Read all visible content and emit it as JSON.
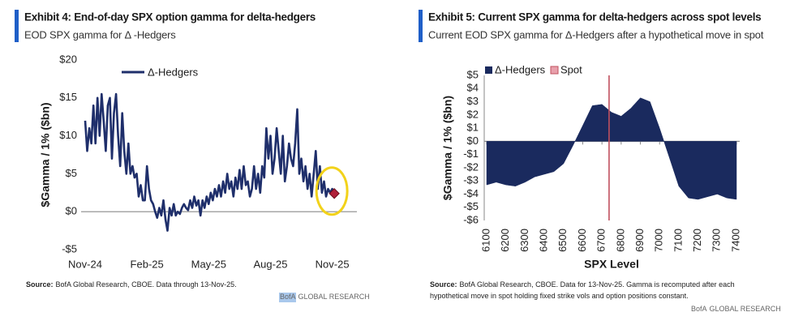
{
  "chart_data": [
    {
      "type": "line",
      "title": "Exhibit 4: End-of-day SPX option gamma for delta-hedgers",
      "subtitle": "EOD SPX gamma for  Δ -Hedgers",
      "y_label": "$Gamma / 1% ($bn)",
      "xlim": [
        0,
        13
      ],
      "xticks": [
        {
          "value": 0,
          "label": "Nov-24"
        },
        {
          "value": 3,
          "label": "Feb-25"
        },
        {
          "value": 6,
          "label": "May-25"
        },
        {
          "value": 9,
          "label": "Aug-25"
        },
        {
          "value": 12,
          "label": "Nov-25"
        }
      ],
      "ylim": [
        -5,
        20
      ],
      "yticks": [
        {
          "value": -5,
          "label": "-$5"
        },
        {
          "value": 0,
          "label": "$0"
        },
        {
          "value": 5,
          "label": "$5"
        },
        {
          "value": 10,
          "label": "$10"
        },
        {
          "value": 15,
          "label": "$15"
        },
        {
          "value": 20,
          "label": "$20"
        }
      ],
      "zero_line": true,
      "highlight_last": true,
      "x": [
        0,
        0.1,
        0.2,
        0.3,
        0.4,
        0.5,
        0.6,
        0.7,
        0.8,
        0.9,
        1,
        1.1,
        1.2,
        1.3,
        1.4,
        1.5,
        1.6,
        1.7,
        1.8,
        1.9,
        2,
        2.1,
        2.2,
        2.3,
        2.4,
        2.5,
        2.6,
        2.7,
        2.8,
        2.9,
        3,
        3.1,
        3.2,
        3.3,
        3.4,
        3.5,
        3.6,
        3.7,
        3.8,
        3.9,
        4,
        4.1,
        4.2,
        4.3,
        4.4,
        4.5,
        4.6,
        4.7,
        4.8,
        4.9,
        5,
        5.1,
        5.2,
        5.3,
        5.4,
        5.5,
        5.6,
        5.7,
        5.8,
        5.9,
        6,
        6.1,
        6.2,
        6.3,
        6.4,
        6.5,
        6.6,
        6.7,
        6.8,
        6.9,
        7,
        7.1,
        7.2,
        7.3,
        7.4,
        7.5,
        7.6,
        7.7,
        7.8,
        7.9,
        8,
        8.1,
        8.2,
        8.3,
        8.4,
        8.5,
        8.6,
        8.7,
        8.8,
        8.9,
        9,
        9.1,
        9.2,
        9.3,
        9.4,
        9.5,
        9.6,
        9.7,
        9.8,
        9.9,
        10,
        10.1,
        10.2,
        10.3,
        10.4,
        10.5,
        10.6,
        10.7,
        10.8,
        10.9,
        11,
        11.1,
        11.2,
        11.3,
        11.4,
        11.5,
        11.6,
        11.7,
        11.8,
        11.9,
        12,
        12.1
      ],
      "series": [
        {
          "name": "Δ-Hedgers",
          "color": "#1f2f6b",
          "values": [
            12,
            8,
            11,
            9,
            14,
            9,
            15,
            10,
            15.5,
            12,
            8,
            14,
            15,
            7,
            13,
            15.5,
            10,
            6,
            13,
            8,
            5,
            9,
            5,
            6,
            4.5,
            5,
            2,
            3.5,
            1.5,
            1.5,
            6,
            3,
            1.5,
            1,
            0,
            -0.8,
            0.5,
            -0.5,
            1.5,
            -1,
            -2.5,
            0.5,
            -0.5,
            1,
            -0.5,
            0,
            -0.3,
            0.5,
            1,
            0.5,
            0.2,
            1.5,
            0.5,
            2,
            0.8,
            1.5,
            -0.5,
            1.5,
            0.5,
            2,
            1,
            2.5,
            1.5,
            3,
            2,
            3.5,
            2,
            4,
            2.5,
            5,
            3,
            4,
            2,
            4.5,
            3,
            5.5,
            3,
            6,
            3.5,
            4,
            2,
            3,
            6,
            3,
            5,
            2.5,
            6,
            4.5,
            11,
            7,
            10,
            5,
            7,
            11,
            8,
            5,
            10,
            4,
            6,
            9,
            7,
            6,
            9,
            13.5,
            5,
            7,
            4,
            6,
            3,
            5,
            2,
            5,
            8,
            3,
            6,
            2.5,
            4,
            2,
            3,
            2.5,
            3,
            2.4
          ]
        }
      ],
      "source_label": "Source:",
      "source_lines": [
        "BofA Global Research, CBOE. Data through 13-Nov-25."
      ],
      "brand": [
        "BofA",
        "GLOBAL RESEARCH"
      ]
    },
    {
      "type": "area",
      "title": "Exhibit 5: Current SPX gamma for delta-hedgers across spot levels",
      "subtitle": "Current EOD SPX gamma for Δ-Hedgers after a hypothetical move in spot",
      "y_label": "$Gamma / 1% ($bn)",
      "x_label": "SPX Level",
      "xlim": [
        6100,
        7400
      ],
      "xticks": [
        6100,
        6200,
        6300,
        6400,
        6500,
        6600,
        6700,
        6800,
        6900,
        7000,
        7100,
        7200,
        7300,
        7400
      ],
      "ylim": [
        -6,
        5
      ],
      "yticks": [
        {
          "value": -6,
          "label": "-$6"
        },
        {
          "value": -5,
          "label": "-$5"
        },
        {
          "value": -4,
          "label": "-$4"
        },
        {
          "value": -3,
          "label": "-$3"
        },
        {
          "value": -2,
          "label": "-$2"
        },
        {
          "value": -1,
          "label": "-$1"
        },
        {
          "value": 0,
          "label": "$0"
        },
        {
          "value": 1,
          "label": "$1"
        },
        {
          "value": 2,
          "label": "$2"
        },
        {
          "value": 3,
          "label": "$3"
        },
        {
          "value": 4,
          "label": "$4"
        },
        {
          "value": 5,
          "label": "$5"
        }
      ],
      "zero_line": true,
      "x": [
        6100,
        6150,
        6200,
        6250,
        6300,
        6350,
        6400,
        6450,
        6500,
        6550,
        6600,
        6650,
        6700,
        6750,
        6800,
        6850,
        6900,
        6950,
        7000,
        7050,
        7100,
        7150,
        7200,
        7250,
        7300,
        7350,
        7400
      ],
      "series": [
        {
          "name": "Δ-Hedgers",
          "color": "#1a2a5e",
          "values": [
            -3.3,
            -3.1,
            -3.3,
            -3.4,
            -3.1,
            -2.7,
            -2.5,
            -2.3,
            -1.7,
            -0.3,
            1.2,
            2.7,
            2.8,
            2.2,
            1.9,
            2.5,
            3.3,
            3.0,
            1.0,
            -1.2,
            -3.4,
            -4.3,
            -4.4,
            -4.2,
            -4.0,
            -4.3,
            -4.4
          ]
        },
        {
          "name": "Spot",
          "color": "#c0505e",
          "x": 6737
        }
      ],
      "source_label": "Source:",
      "source_lines": [
        "BofA Global Research, CBOE. Data for 13-Nov-25. Gamma is recomputed after each",
        "hypothetical move in spot holding fixed strike vols and option positions constant."
      ],
      "brand": [
        "BofA",
        "GLOBAL RESEARCH"
      ]
    }
  ]
}
